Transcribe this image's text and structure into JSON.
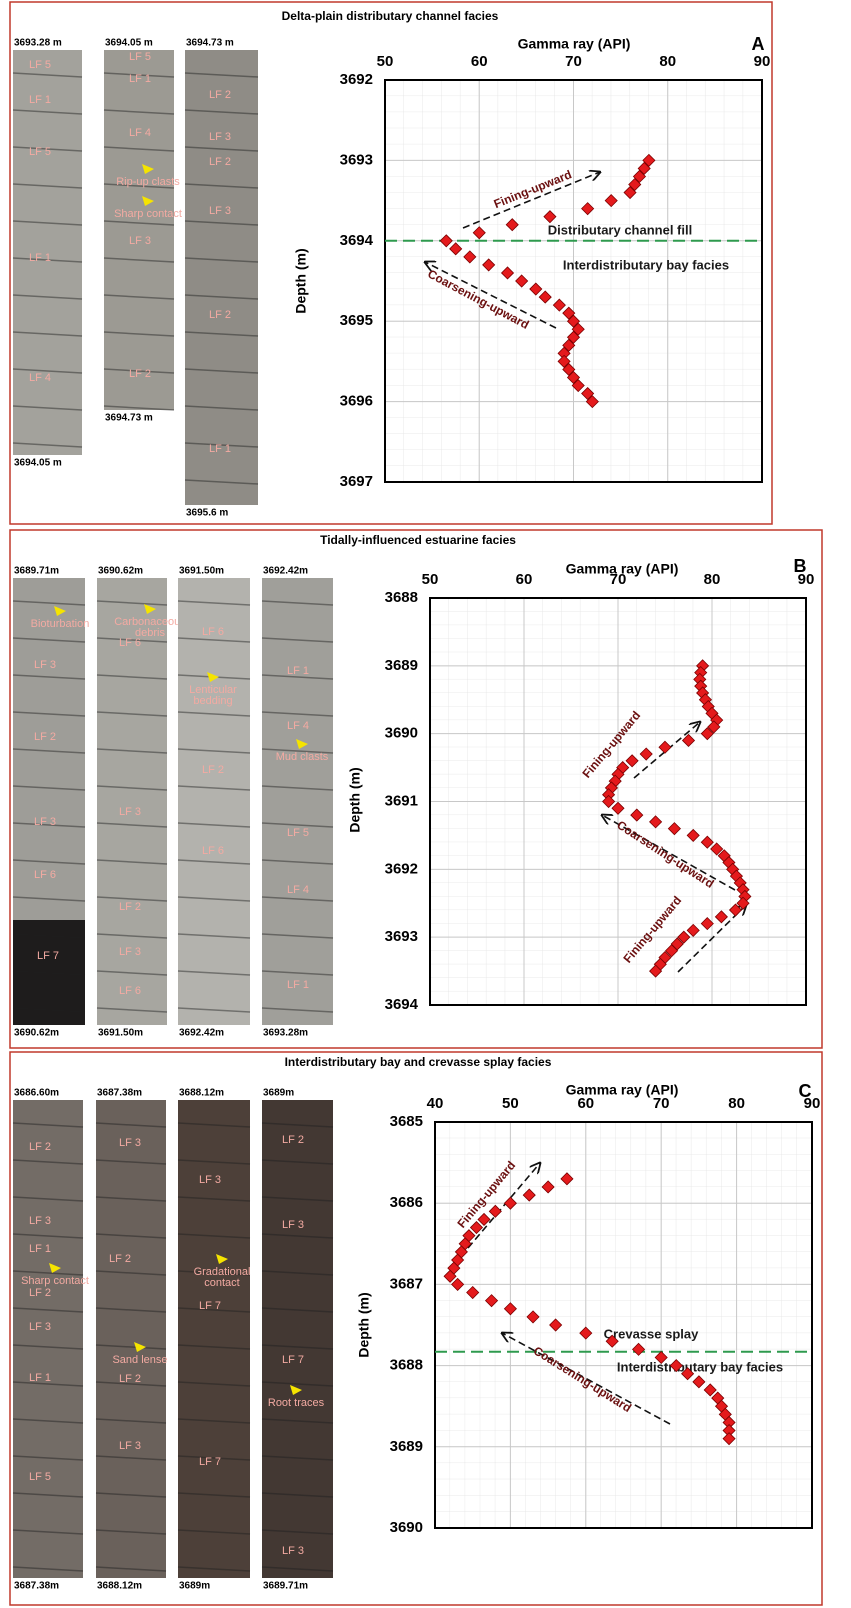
{
  "panels": [
    {
      "title": "Delta-plain distributary channel facies",
      "cores": [
        {
          "top": "3693.28 m",
          "bottom": "3694.05 m",
          "labels": [
            "LF 5",
            "LF 1",
            "LF 5",
            "LF 1",
            "LF 4"
          ]
        },
        {
          "top": "3694.05 m",
          "bottom": "3694.73 m",
          "labels": [
            "LF 5",
            "LF 1",
            "LF 4",
            [
              "Rip-up clasts"
            ],
            [
              "Sharp contact"
            ],
            "LF 3",
            "LF 2"
          ]
        },
        {
          "top": "3694.73 m",
          "bottom": "3695.6 m",
          "labels": [
            "LF 2",
            "LF 3",
            "LF 2",
            "LF 3",
            "LF 2",
            "LF 1"
          ]
        }
      ]
    },
    {
      "title": "Tidally-influenced estuarine facies",
      "cores": [
        {
          "top": "3689.71m",
          "bottom": "3690.62m",
          "labels": [
            [
              "Bioturbation"
            ],
            "LF 3",
            "LF 2",
            "LF 3",
            "LF 6",
            "LF 7"
          ]
        },
        {
          "top": "3690.62m",
          "bottom": "3691.50m",
          "labels": [
            [
              "Carbonaceous",
              "debris"
            ],
            "LF 6",
            "LF 3",
            "LF 2",
            "LF 3",
            "LF 6"
          ]
        },
        {
          "top": "3691.50m",
          "bottom": "3692.42m",
          "labels": [
            "LF 6",
            [
              "Lenticular",
              "bedding"
            ],
            "LF 2",
            "LF 6"
          ]
        },
        {
          "top": "3692.42m",
          "bottom": "3693.28m",
          "labels": [
            "LF 1",
            "LF 4",
            [
              "Mud clasts"
            ],
            "LF 5",
            "LF 4",
            "LF 1"
          ]
        }
      ]
    },
    {
      "title": "Interdistributary bay and crevasse splay facies",
      "cores": [
        {
          "top": "3686.60m",
          "bottom": "3687.38m",
          "labels": [
            "LF 2",
            "LF 3",
            "LF 1",
            [
              "Sharp contact"
            ],
            "LF 2",
            "LF 3",
            "LF 1",
            "LF 5"
          ]
        },
        {
          "top": "3687.38m",
          "bottom": "3688.12m",
          "labels": [
            "LF 3",
            "LF 2",
            [
              "Sand lense"
            ],
            "LF 2",
            "LF 3"
          ]
        },
        {
          "top": "3688.12m",
          "bottom": "3689m",
          "labels": [
            "LF 3",
            [
              "Gradational",
              "contact"
            ],
            "LF 7",
            "LF 7"
          ]
        },
        {
          "top": "3689m",
          "bottom": "3689.71m",
          "labels": [
            "LF 2",
            "LF 3",
            "LF 7",
            [
              "Root traces"
            ],
            "LF 3"
          ]
        }
      ]
    }
  ],
  "chart_data": [
    {
      "type": "scatter",
      "panel_label": "A",
      "xlabel": "Gamma ray (API)",
      "ylabel": "Depth (m)",
      "x": [
        78,
        77.5,
        77,
        76.5,
        76,
        74,
        71.5,
        67.5,
        63.5,
        60,
        56.5,
        57.5,
        59,
        61,
        63,
        64.5,
        66,
        67,
        68.5,
        69.5,
        70,
        70.5,
        70,
        69.5,
        69,
        69,
        69.5,
        70,
        70.5,
        71.5,
        72
      ],
      "y": [
        3693.0,
        3693.1,
        3693.2,
        3693.3,
        3693.4,
        3693.5,
        3693.6,
        3693.7,
        3693.8,
        3693.9,
        3694.0,
        3694.1,
        3694.2,
        3694.3,
        3694.4,
        3694.5,
        3694.6,
        3694.7,
        3694.8,
        3694.9,
        3695.0,
        3695.1,
        3695.2,
        3695.3,
        3695.4,
        3695.5,
        3695.6,
        3695.7,
        3695.8,
        3695.9,
        3696.0
      ],
      "xlim": [
        50,
        90
      ],
      "xticks": [
        50,
        60,
        70,
        80,
        90
      ],
      "ylim": [
        3692,
        3697
      ],
      "yticks": [
        3692,
        3693,
        3694,
        3695,
        3696,
        3697
      ],
      "y_inverted": true,
      "color": "#e41a1c",
      "marker": "diamond",
      "grid": true,
      "reference_lines": [
        {
          "y": 3694,
          "color": "#2e9a4e"
        }
      ],
      "annotations": [
        "Fining-upward",
        "Coarsening-upward",
        "Distributary channel fill",
        "Interdistributary bay facies"
      ]
    },
    {
      "type": "scatter",
      "panel_label": "B",
      "xlabel": "Gamma ray (API)",
      "ylabel": "Depth (m)",
      "x": [
        79,
        78.8,
        78.7,
        78.8,
        79,
        79.3,
        79.6,
        80,
        80.5,
        80.2,
        79.5,
        77.5,
        75,
        73,
        71.5,
        70.5,
        70,
        69.7,
        69.3,
        69,
        69,
        70,
        72,
        74,
        76,
        78,
        79.5,
        80.5,
        81.3,
        81.8,
        82.2,
        82.6,
        83,
        83.3,
        83.5,
        83.3,
        82.5,
        81,
        79.5,
        78,
        77,
        76.3,
        75.7,
        75,
        74.5,
        74
      ],
      "y": [
        3689.0,
        3689.1,
        3689.2,
        3689.3,
        3689.4,
        3689.5,
        3689.6,
        3689.7,
        3689.8,
        3689.9,
        3690.0,
        3690.1,
        3690.2,
        3690.3,
        3690.4,
        3690.5,
        3690.6,
        3690.7,
        3690.8,
        3690.9,
        3691.0,
        3691.1,
        3691.2,
        3691.3,
        3691.4,
        3691.5,
        3691.6,
        3691.7,
        3691.8,
        3691.9,
        3692.0,
        3692.1,
        3692.2,
        3692.3,
        3692.4,
        3692.5,
        3692.6,
        3692.7,
        3692.8,
        3692.9,
        3693.0,
        3693.1,
        3693.2,
        3693.3,
        3693.4,
        3693.5
      ],
      "xlim": [
        50,
        90
      ],
      "xticks": [
        50,
        60,
        70,
        80,
        90
      ],
      "ylim": [
        3688,
        3694
      ],
      "yticks": [
        3688,
        3689,
        3690,
        3691,
        3692,
        3693,
        3694
      ],
      "y_inverted": true,
      "color": "#e41a1c",
      "marker": "diamond",
      "grid": true,
      "reference_lines": [],
      "annotations": [
        "Fining-upward",
        "Coarsening-upward",
        "Fining-upward"
      ]
    },
    {
      "type": "scatter",
      "panel_label": "C",
      "xlabel": "Gamma ray (API)",
      "ylabel": "Depth (m)",
      "x": [
        57.5,
        55,
        52.5,
        50,
        48,
        46.5,
        45.5,
        44.5,
        44,
        43.5,
        43,
        42.5,
        42,
        43,
        45,
        47.5,
        50,
        53,
        56,
        60,
        63.5,
        67,
        70,
        72,
        73.5,
        75,
        76.5,
        77.5,
        78,
        78.5,
        79,
        79,
        79
      ],
      "y": [
        3685.7,
        3685.8,
        3685.9,
        3686.0,
        3686.1,
        3686.2,
        3686.3,
        3686.4,
        3686.5,
        3686.6,
        3686.7,
        3686.8,
        3686.9,
        3687.0,
        3687.1,
        3687.2,
        3687.3,
        3687.4,
        3687.5,
        3687.6,
        3687.7,
        3687.8,
        3687.9,
        3688.0,
        3688.1,
        3688.2,
        3688.3,
        3688.4,
        3688.5,
        3688.6,
        3688.7,
        3688.8,
        3688.9
      ],
      "xlim": [
        40,
        90
      ],
      "xticks": [
        40,
        50,
        60,
        70,
        80,
        90
      ],
      "ylim": [
        3685,
        3690
      ],
      "yticks": [
        3685,
        3686,
        3687,
        3688,
        3689,
        3690
      ],
      "y_inverted": true,
      "color": "#e41a1c",
      "marker": "diamond",
      "grid": true,
      "reference_lines": [
        {
          "y": 3687.83,
          "color": "#2e9a4e"
        }
      ],
      "annotations": [
        "Fining-upward",
        "Crevasse splay",
        "Interdistributary bay facies",
        "Coarsening-upward"
      ]
    }
  ]
}
